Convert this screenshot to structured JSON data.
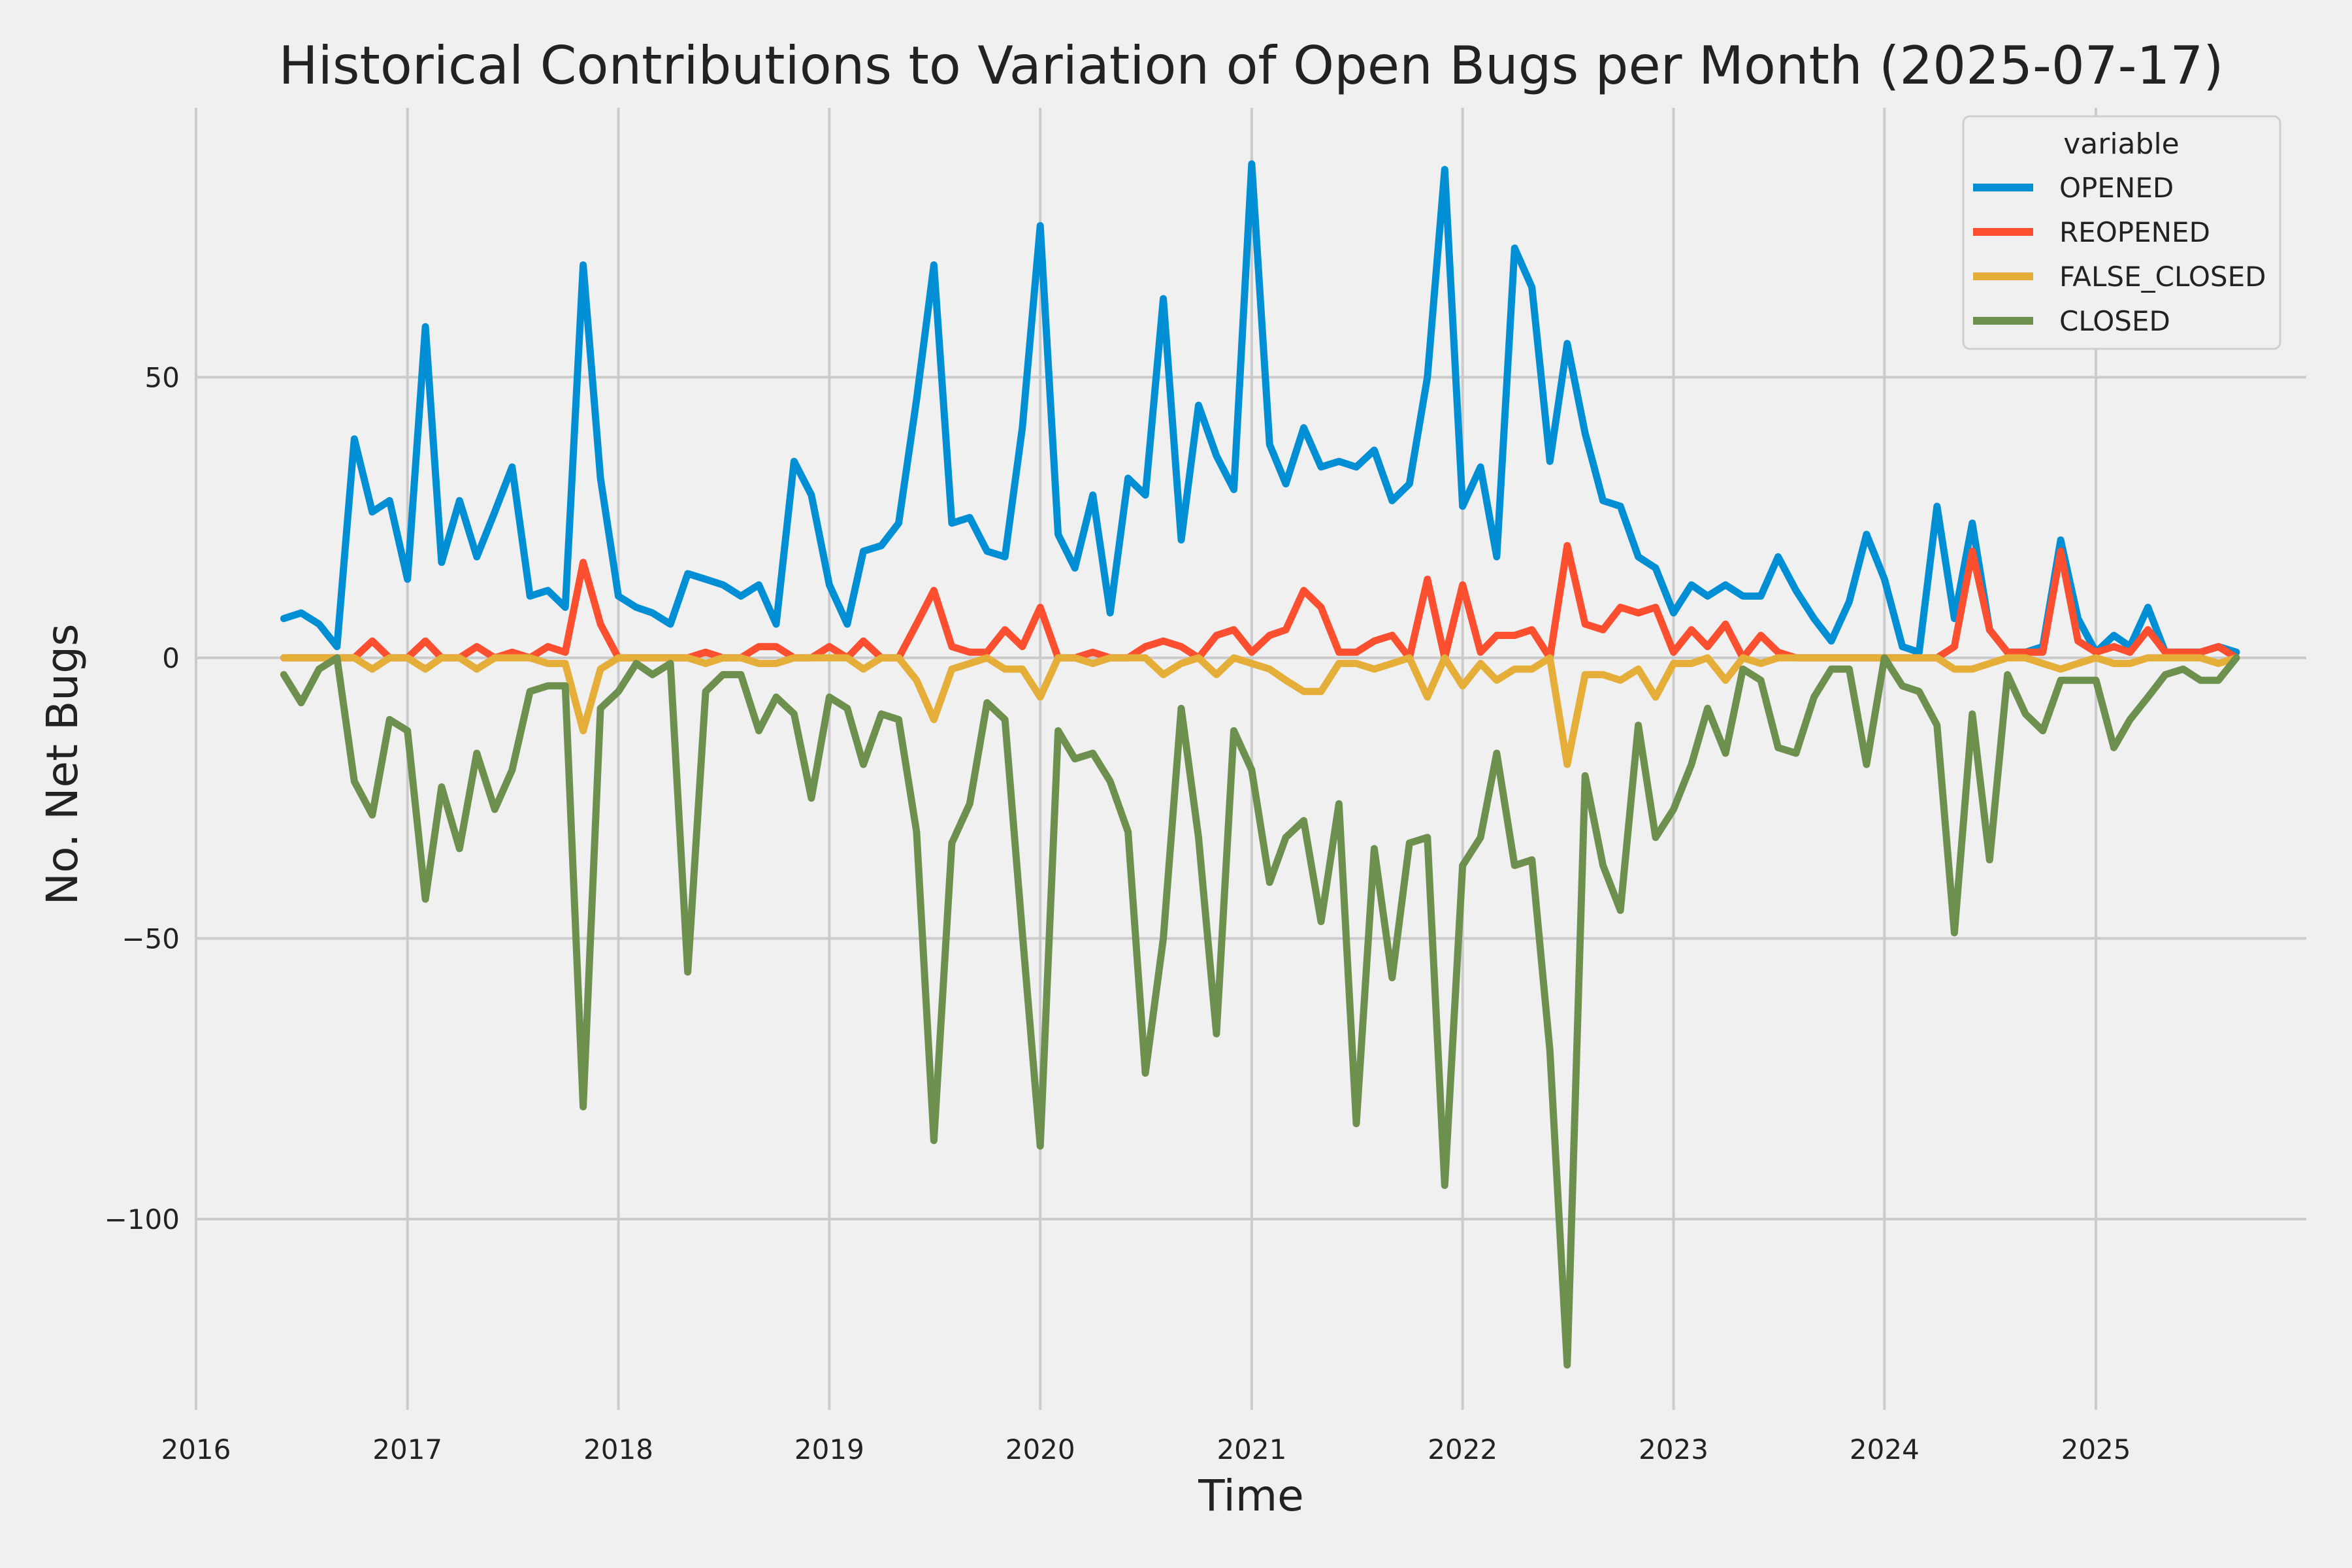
{
  "chart_data": {
    "type": "line",
    "title": "Historical Contributions to Variation of Open Bugs per Month (2025-07-17)",
    "xlabel": "Time",
    "ylabel": "No. Net Bugs",
    "x_tick_labels": [
      "2016",
      "2017",
      "2018",
      "2019",
      "2020",
      "2021",
      "2022",
      "2023",
      "2024",
      "2025"
    ],
    "y_ticks": [
      50,
      0,
      -50,
      -100
    ],
    "y_tick_labels": [
      "50",
      "0",
      "−50",
      "−100"
    ],
    "xlim": [
      "2016-01-01",
      "2025-12-31"
    ],
    "ylim": [
      -134,
      98
    ],
    "grid": true,
    "legend_title": "variable",
    "legend_position": "top-right",
    "x_start": "2016-06",
    "x_frequency": "monthly",
    "series": [
      {
        "name": "OPENED",
        "color": "#008fd5",
        "values": [
          7,
          8,
          6,
          2,
          39,
          26,
          28,
          14,
          59,
          17,
          28,
          18,
          26,
          34,
          11,
          12,
          9,
          70,
          32,
          11,
          9,
          8,
          6,
          15,
          14,
          13,
          11,
          13,
          6,
          35,
          29,
          13,
          6,
          19,
          20,
          24,
          46,
          70,
          24,
          25,
          19,
          18,
          41,
          77,
          22,
          16,
          29,
          8,
          32,
          29,
          64,
          21,
          45,
          36,
          30,
          88,
          38,
          31,
          41,
          34,
          35,
          34,
          37,
          28,
          31,
          50,
          87,
          27,
          34,
          18,
          73,
          66,
          35,
          56,
          40,
          28,
          27,
          18,
          16,
          8,
          13,
          11,
          13,
          11,
          11,
          18,
          12,
          7,
          3,
          10,
          22,
          14,
          2,
          1,
          27,
          7,
          24,
          5,
          1,
          1,
          2,
          21,
          7,
          1,
          4,
          2,
          9,
          1,
          1,
          1,
          2,
          1
        ]
      },
      {
        "name": "REOPENED",
        "color": "#fc4f30",
        "values": [
          0,
          0,
          0,
          0,
          0,
          3,
          0,
          0,
          3,
          0,
          0,
          2,
          0,
          1,
          0,
          2,
          1,
          17,
          6,
          0,
          0,
          0,
          0,
          0,
          1,
          0,
          0,
          2,
          2,
          0,
          0,
          2,
          0,
          3,
          0,
          0,
          6,
          12,
          2,
          1,
          1,
          5,
          2,
          9,
          0,
          0,
          1,
          0,
          0,
          2,
          3,
          2,
          0,
          4,
          5,
          1,
          4,
          5,
          12,
          9,
          1,
          1,
          3,
          4,
          0,
          14,
          0,
          13,
          1,
          4,
          4,
          5,
          0,
          20,
          6,
          5,
          9,
          8,
          9,
          1,
          5,
          2,
          6,
          0,
          4,
          1,
          0,
          0,
          0,
          0,
          0,
          0,
          0,
          0,
          0,
          2,
          19,
          5,
          1,
          1,
          1,
          19,
          3,
          1,
          2,
          1,
          5,
          1,
          1,
          1,
          2,
          0
        ]
      },
      {
        "name": "FALSE_CLOSED",
        "color": "#e5ae38",
        "values": [
          0,
          0,
          0,
          0,
          0,
          -2,
          0,
          0,
          -2,
          0,
          0,
          -2,
          0,
          0,
          0,
          -1,
          -1,
          -13,
          -2,
          0,
          0,
          0,
          0,
          0,
          -1,
          0,
          0,
          -1,
          -1,
          0,
          0,
          0,
          0,
          -2,
          0,
          0,
          -4,
          -11,
          -2,
          -1,
          0,
          -2,
          -2,
          -7,
          0,
          0,
          -1,
          0,
          0,
          0,
          -3,
          -1,
          0,
          -3,
          0,
          -1,
          -2,
          -4,
          -6,
          -6,
          -1,
          -1,
          -2,
          -1,
          0,
          -7,
          0,
          -5,
          -1,
          -4,
          -2,
          -2,
          0,
          -19,
          -3,
          -3,
          -4,
          -2,
          -7,
          -1,
          -1,
          0,
          -4,
          0,
          -1,
          0,
          0,
          0,
          0,
          0,
          0,
          0,
          0,
          0,
          0,
          -2,
          -2,
          -1,
          0,
          0,
          -1,
          -2,
          -1,
          0,
          -1,
          -1,
          0,
          0,
          0,
          0,
          -1,
          0
        ]
      },
      {
        "name": "CLOSED",
        "color": "#6d904f",
        "values": [
          -3,
          -8,
          -2,
          0,
          -22,
          -28,
          -11,
          -13,
          -43,
          -23,
          -34,
          -17,
          -27,
          -20,
          -6,
          -5,
          -5,
          -80,
          -9,
          -6,
          -1,
          -3,
          -1,
          -56,
          -6,
          -3,
          -3,
          -13,
          -7,
          -10,
          -25,
          -7,
          -9,
          -19,
          -10,
          -11,
          -31,
          -86,
          -33,
          -26,
          -8,
          -11,
          -49,
          -87,
          -13,
          -18,
          -17,
          -22,
          -31,
          -74,
          -50,
          -9,
          -32,
          -67,
          -13,
          -20,
          -40,
          -32,
          -29,
          -47,
          -26,
          -83,
          -34,
          -57,
          -33,
          -32,
          -94,
          -37,
          -32,
          -17,
          -37,
          -36,
          -70,
          -126,
          -21,
          -37,
          -45,
          -12,
          -32,
          -27,
          -19,
          -9,
          -17,
          -2,
          -4,
          -16,
          -17,
          -7,
          -2,
          -2,
          -19,
          0,
          -5,
          -6,
          -12,
          -49,
          -10,
          -36,
          -3,
          -10,
          -13,
          -4,
          -4,
          -4,
          -16,
          -11,
          -7,
          -3,
          -2,
          -4,
          -4,
          0
        ]
      }
    ]
  }
}
